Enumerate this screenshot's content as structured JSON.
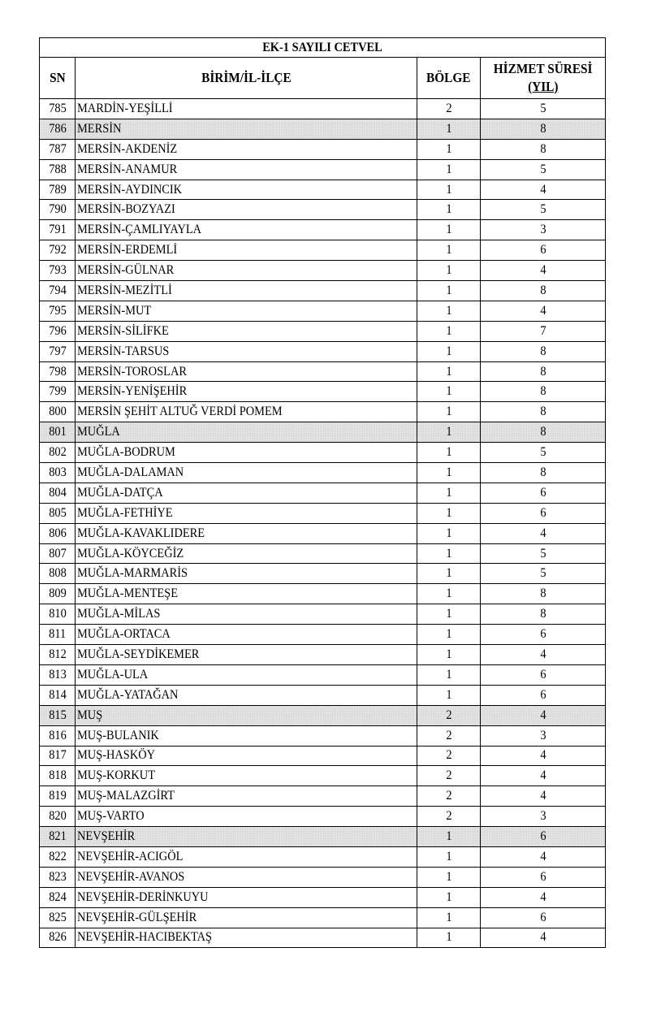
{
  "title": "EK-1 SAYILI CETVEL",
  "headers": {
    "sn": "SN",
    "unit": "BİRİM/İL-İLÇE",
    "region": "BÖLGE",
    "service_line1": "HİZMET SÜRESİ",
    "service_line2": "(YIL)"
  },
  "shade_color": "#e4e4e4",
  "rows": [
    {
      "sn": "785",
      "name": "MARDİN-YEŞİLLİ",
      "region": "2",
      "years": "5",
      "shaded": false
    },
    {
      "sn": "786",
      "name": "MERSİN",
      "region": "1",
      "years": "8",
      "shaded": true
    },
    {
      "sn": "787",
      "name": "MERSİN-AKDENİZ",
      "region": "1",
      "years": "8",
      "shaded": false
    },
    {
      "sn": "788",
      "name": "MERSİN-ANAMUR",
      "region": "1",
      "years": "5",
      "shaded": false
    },
    {
      "sn": "789",
      "name": "MERSİN-AYDINCIK",
      "region": "1",
      "years": "4",
      "shaded": false
    },
    {
      "sn": "790",
      "name": "MERSİN-BOZYAZI",
      "region": "1",
      "years": "5",
      "shaded": false
    },
    {
      "sn": "791",
      "name": "MERSİN-ÇAMLIYAYLA",
      "region": "1",
      "years": "3",
      "shaded": false
    },
    {
      "sn": "792",
      "name": "MERSİN-ERDEMLİ",
      "region": "1",
      "years": "6",
      "shaded": false
    },
    {
      "sn": "793",
      "name": "MERSİN-GÜLNAR",
      "region": "1",
      "years": "4",
      "shaded": false
    },
    {
      "sn": "794",
      "name": "MERSİN-MEZİTLİ",
      "region": "1",
      "years": "8",
      "shaded": false
    },
    {
      "sn": "795",
      "name": "MERSİN-MUT",
      "region": "1",
      "years": "4",
      "shaded": false
    },
    {
      "sn": "796",
      "name": "MERSİN-SİLİFKE",
      "region": "1",
      "years": "7",
      "shaded": false
    },
    {
      "sn": "797",
      "name": "MERSİN-TARSUS",
      "region": "1",
      "years": "8",
      "shaded": false
    },
    {
      "sn": "798",
      "name": "MERSİN-TOROSLAR",
      "region": "1",
      "years": "8",
      "shaded": false
    },
    {
      "sn": "799",
      "name": "MERSİN-YENİŞEHİR",
      "region": "1",
      "years": "8",
      "shaded": false
    },
    {
      "sn": "800",
      "name": "MERSİN ŞEHİT ALTUĞ VERDİ POMEM",
      "region": "1",
      "years": "8",
      "shaded": false
    },
    {
      "sn": "801",
      "name": "MUĞLA",
      "region": "1",
      "years": "8",
      "shaded": true
    },
    {
      "sn": "802",
      "name": "MUĞLA-BODRUM",
      "region": "1",
      "years": "5",
      "shaded": false
    },
    {
      "sn": "803",
      "name": "MUĞLA-DALAMAN",
      "region": "1",
      "years": "8",
      "shaded": false
    },
    {
      "sn": "804",
      "name": "MUĞLA-DATÇA",
      "region": "1",
      "years": "6",
      "shaded": false
    },
    {
      "sn": "805",
      "name": "MUĞLA-FETHİYE",
      "region": "1",
      "years": "6",
      "shaded": false
    },
    {
      "sn": "806",
      "name": "MUĞLA-KAVAKLIDERE",
      "region": "1",
      "years": "4",
      "shaded": false
    },
    {
      "sn": "807",
      "name": "MUĞLA-KÖYCEĞİZ",
      "region": "1",
      "years": "5",
      "shaded": false
    },
    {
      "sn": "808",
      "name": "MUĞLA-MARMARİS",
      "region": "1",
      "years": "5",
      "shaded": false
    },
    {
      "sn": "809",
      "name": "MUĞLA-MENTEŞE",
      "region": "1",
      "years": "8",
      "shaded": false
    },
    {
      "sn": "810",
      "name": "MUĞLA-MİLAS",
      "region": "1",
      "years": "8",
      "shaded": false
    },
    {
      "sn": "811",
      "name": "MUĞLA-ORTACA",
      "region": "1",
      "years": "6",
      "shaded": false
    },
    {
      "sn": "812",
      "name": "MUĞLA-SEYDİKEMER",
      "region": "1",
      "years": "4",
      "shaded": false
    },
    {
      "sn": "813",
      "name": "MUĞLA-ULA",
      "region": "1",
      "years": "6",
      "shaded": false
    },
    {
      "sn": "814",
      "name": "MUĞLA-YATAĞAN",
      "region": "1",
      "years": "6",
      "shaded": false
    },
    {
      "sn": "815",
      "name": "MUŞ",
      "region": "2",
      "years": "4",
      "shaded": true
    },
    {
      "sn": "816",
      "name": "MUŞ-BULANIK",
      "region": "2",
      "years": "3",
      "shaded": false
    },
    {
      "sn": "817",
      "name": "MUŞ-HASKÖY",
      "region": "2",
      "years": "4",
      "shaded": false
    },
    {
      "sn": "818",
      "name": "MUŞ-KORKUT",
      "region": "2",
      "years": "4",
      "shaded": false
    },
    {
      "sn": "819",
      "name": "MUŞ-MALAZGİRT",
      "region": "2",
      "years": "4",
      "shaded": false
    },
    {
      "sn": "820",
      "name": "MUŞ-VARTO",
      "region": "2",
      "years": "3",
      "shaded": false
    },
    {
      "sn": "821",
      "name": "NEVŞEHİR",
      "region": "1",
      "years": "6",
      "shaded": true
    },
    {
      "sn": "822",
      "name": "NEVŞEHİR-ACIGÖL",
      "region": "1",
      "years": "4",
      "shaded": false
    },
    {
      "sn": "823",
      "name": "NEVŞEHİR-AVANOS",
      "region": "1",
      "years": "6",
      "shaded": false
    },
    {
      "sn": "824",
      "name": "NEVŞEHİR-DERİNKUYU",
      "region": "1",
      "years": "4",
      "shaded": false
    },
    {
      "sn": "825",
      "name": "NEVŞEHİR-GÜLŞEHİR",
      "region": "1",
      "years": "6",
      "shaded": false
    },
    {
      "sn": "826",
      "name": "NEVŞEHİR-HACIBEKTAŞ",
      "region": "1",
      "years": "4",
      "shaded": false
    }
  ]
}
